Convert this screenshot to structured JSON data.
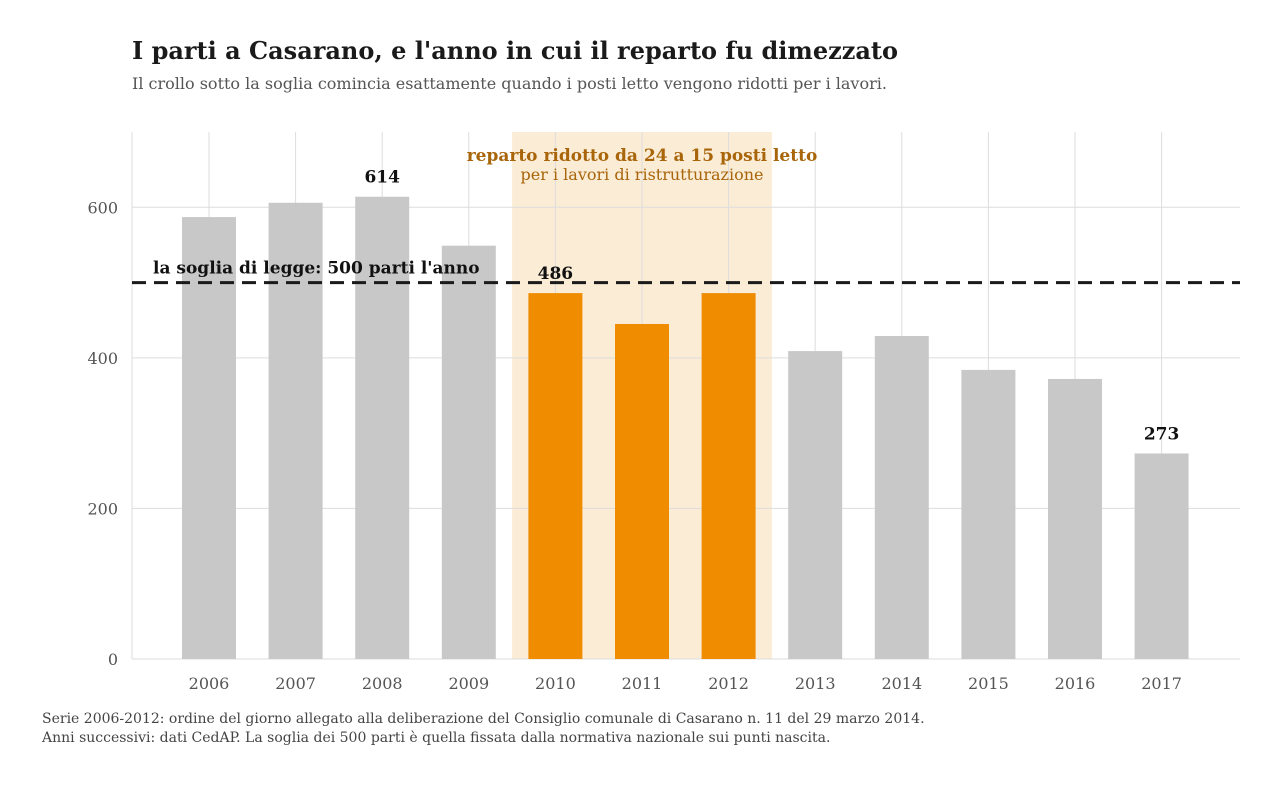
{
  "title": "I parti a Casarano, e l'anno in cui il reparto fu dimezzato",
  "subtitle": "Il crollo sotto la soglia comincia esattamente quando i posti letto vengono ridotti per i lavori.",
  "chart_data": {
    "type": "bar",
    "categories": [
      "2006",
      "2007",
      "2008",
      "2009",
      "2010",
      "2011",
      "2012",
      "2013",
      "2014",
      "2015",
      "2016",
      "2017"
    ],
    "values": [
      587,
      606,
      614,
      549,
      486,
      445,
      486,
      409,
      429,
      384,
      372,
      273
    ],
    "ylim": [
      0,
      700
    ],
    "yticks": [
      0,
      200,
      400,
      600
    ],
    "grid": true,
    "highlighted_categories": [
      "2010",
      "2011",
      "2012"
    ],
    "labeled_values": [
      {
        "category": "2008",
        "label": "614"
      },
      {
        "category": "2010",
        "label": "486"
      },
      {
        "category": "2017",
        "label": "273"
      }
    ],
    "threshold": {
      "value": 500,
      "label": "la soglia di legge: 500 parti l'anno"
    },
    "highlight_band": {
      "from": "2010",
      "to": "2012",
      "title": "reparto ridotto da 24 a 15 posti letto",
      "subtitle": "per i lavori di ristrutturazione"
    },
    "colors": {
      "bar": "#c8c8c8",
      "bar_highlight": "#f08c00",
      "band_fill": "#fbecd6",
      "band_text": "#a8650a",
      "threshold_line": "#1a1a1a",
      "grid": "#dddddd"
    }
  },
  "footer": {
    "line1": "Serie 2006-2012: ordine del giorno allegato alla deliberazione del Consiglio comunale di Casarano n. 11 del 29 marzo 2014.",
    "line2": "Anni successivi: dati CedAP. La soglia dei 500 parti è quella fissata dalla normativa nazionale sui punti nascita."
  }
}
